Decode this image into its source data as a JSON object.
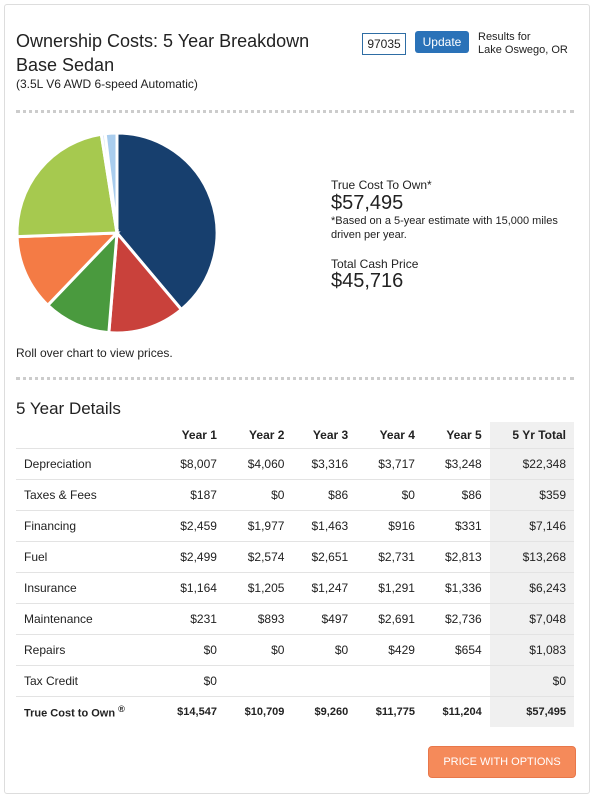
{
  "header": {
    "title": "Ownership Costs: 5 Year Breakdown",
    "subtitle": "Base Sedan",
    "trim": "(3.5L V6 AWD 6-speed Automatic)",
    "zip": "97035",
    "button": "Update",
    "results_label": "Results for",
    "location": "Lake Oswego, OR"
  },
  "chart_data": {
    "type": "pie",
    "values": [
      22348,
      7146,
      6243,
      7048,
      13268,
      359,
      1083
    ],
    "colors": [
      "#173f6e",
      "#c9413b",
      "#4a9a3e",
      "#f47b45",
      "#a6c94f",
      "#d7e6f5",
      "#a9cdee"
    ]
  },
  "summary": {
    "tco_label": "True Cost To Own*",
    "tco_value": "$57,495",
    "note": "*Based on a 5-year estimate with 15,000 miles driven per year.",
    "cash_label": "Total Cash Price",
    "cash_value": "$45,716",
    "hint": "Roll over chart to view prices."
  },
  "details": {
    "title": "5 Year Details",
    "columns": [
      "Year 1",
      "Year 2",
      "Year 3",
      "Year 4",
      "Year 5",
      "5 Yr Total"
    ],
    "rows": [
      [
        "Depreciation",
        "$8,007",
        "$4,060",
        "$3,316",
        "$3,717",
        "$3,248",
        "$22,348"
      ],
      [
        "Taxes & Fees",
        "$187",
        "$0",
        "$86",
        "$0",
        "$86",
        "$359"
      ],
      [
        "Financing",
        "$2,459",
        "$1,977",
        "$1,463",
        "$916",
        "$331",
        "$7,146"
      ],
      [
        "Fuel",
        "$2,499",
        "$2,574",
        "$2,651",
        "$2,731",
        "$2,813",
        "$13,268"
      ],
      [
        "Insurance",
        "$1,164",
        "$1,205",
        "$1,247",
        "$1,291",
        "$1,336",
        "$6,243"
      ],
      [
        "Maintenance",
        "$231",
        "$893",
        "$497",
        "$2,691",
        "$2,736",
        "$7,048"
      ],
      [
        "Repairs",
        "$0",
        "$0",
        "$0",
        "$429",
        "$654",
        "$1,083"
      ],
      [
        "Tax Credit",
        "$0",
        null,
        null,
        null,
        null,
        "$0"
      ]
    ],
    "total": {
      "label": "True Cost to Own",
      "mark": "®",
      "cells": [
        "$14,547",
        "$10,709",
        "$9,260",
        "$11,775",
        "$11,204",
        "$57,495"
      ]
    }
  },
  "cta": "PRICE WITH OPTIONS"
}
